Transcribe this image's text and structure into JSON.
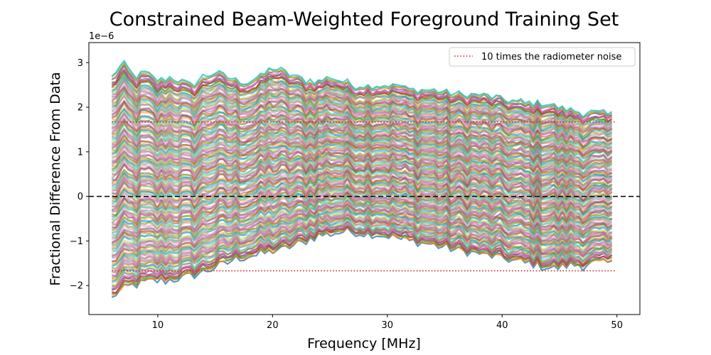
{
  "chart_data": {
    "type": "line",
    "title": "Constrained Beam-Weighted Foreground Training Set",
    "xlabel": "Frequency [MHz]",
    "ylabel": "Fractional Difference From Data",
    "y_offset_label": "1e−6",
    "xlim": [
      4,
      52
    ],
    "ylim": [
      -2.65,
      3.45
    ],
    "x_ticks": [
      10,
      20,
      30,
      40,
      50
    ],
    "y_ticks": [
      -2,
      -1,
      0,
      1,
      2,
      3
    ],
    "y_tick_labels": [
      "−2",
      "−1",
      "0",
      "1",
      "2",
      "3"
    ],
    "frequency_range": [
      6,
      49.8
    ],
    "envelope": {
      "note_values_in_1e-6_units": true,
      "frequency": [
        6,
        7,
        8,
        9,
        10,
        11,
        12,
        13,
        14,
        15,
        16,
        17,
        18,
        19,
        20,
        21,
        22,
        23,
        24,
        25,
        26,
        27,
        28,
        29,
        30,
        31,
        32,
        33,
        34,
        35,
        36,
        37,
        38,
        39,
        40,
        41,
        42,
        43,
        44,
        45,
        46,
        47,
        48,
        49,
        49.8
      ],
      "upper": [
        2.7,
        3.0,
        2.7,
        2.8,
        2.6,
        2.7,
        2.6,
        2.5,
        2.7,
        2.8,
        2.7,
        2.6,
        2.6,
        2.7,
        2.9,
        2.8,
        2.7,
        2.6,
        2.6,
        2.7,
        2.6,
        2.5,
        2.5,
        2.5,
        2.5,
        2.5,
        2.4,
        2.4,
        2.4,
        2.35,
        2.3,
        2.3,
        2.3,
        2.25,
        2.2,
        2.15,
        2.1,
        2.1,
        2.1,
        2.0,
        1.95,
        1.9,
        1.9,
        1.85,
        1.85
      ],
      "lower": [
        -2.3,
        -2.1,
        -2.0,
        -1.95,
        -1.9,
        -1.9,
        -1.85,
        -1.8,
        -1.7,
        -1.6,
        -1.5,
        -1.4,
        -1.35,
        -1.3,
        -1.25,
        -1.2,
        -1.1,
        -1.0,
        -0.9,
        -0.85,
        -0.8,
        -0.8,
        -0.85,
        -0.85,
        -0.9,
        -0.95,
        -1.0,
        -1.05,
        -1.1,
        -1.15,
        -1.2,
        -1.25,
        -1.3,
        -1.35,
        -1.4,
        -1.45,
        -1.5,
        -1.55,
        -1.6,
        -1.6,
        -1.55,
        -1.55,
        -1.5,
        -1.5,
        -1.5
      ]
    },
    "series_count_shown": 140,
    "series_colors": [
      "#1f77b4",
      "#ff7f0e",
      "#2ca02c",
      "#d62728",
      "#9467bd",
      "#8c564b",
      "#e377c2",
      "#7f7f7f",
      "#bcbd22",
      "#17becf"
    ],
    "reference_lines": [
      {
        "name": "10 times the radiometer noise",
        "y": [
          1.67,
          -1.67
        ],
        "x_range": [
          6,
          49.8
        ],
        "color": "#d62728",
        "style": "dotted"
      },
      {
        "name": "",
        "y": [
          0
        ],
        "x_range": [
          4,
          52
        ],
        "color": "#000000",
        "style": "dashed"
      }
    ],
    "legend": {
      "position": "top-right",
      "entries": [
        {
          "label": "10 times the radiometer noise",
          "color": "#d62728",
          "style": "dotted"
        }
      ]
    }
  }
}
